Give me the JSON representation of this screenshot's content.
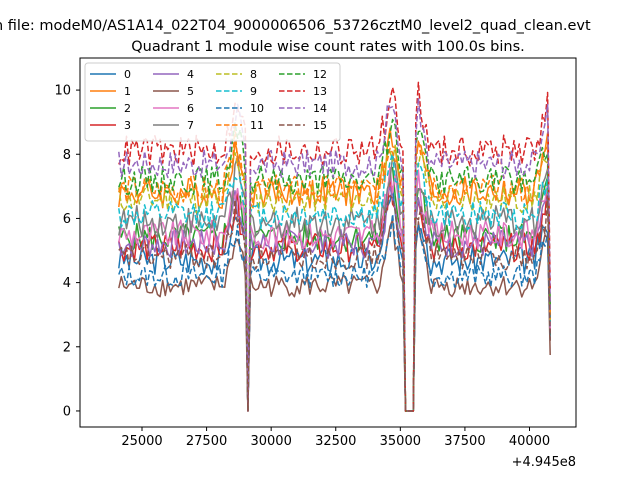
{
  "chart_data": {
    "type": "line",
    "suptitle": "n file: modeM0/AS1A14_022T04_9000006506_53726cztM0_level2_quad_clean.evt",
    "title": "Quadrant 1 module wise count rates with 100.0s bins.",
    "xlabel": "",
    "ylabel": "",
    "x_offset_label": "+4.945e8",
    "xlim": [
      22600,
      41800
    ],
    "ylim": [
      -0.5,
      11.0
    ],
    "x_ticks": [
      25000,
      27500,
      30000,
      32500,
      35000,
      37500,
      40000
    ],
    "x_tick_labels": [
      "25000",
      "27500",
      "30000",
      "32500",
      "35000",
      "37500",
      "40000"
    ],
    "y_ticks": [
      0,
      2,
      4,
      6,
      8,
      10
    ],
    "y_tick_labels": [
      "0",
      "2",
      "4",
      "6",
      "8",
      "10"
    ],
    "grid": false,
    "legend_position": "upper-left",
    "x_range": [
      24100,
      40800
    ],
    "bin": 100,
    "gaps": [
      {
        "start": 29050,
        "end": 29150,
        "drop_to": 0.0
      },
      {
        "start": 35150,
        "end": 35550,
        "drop_to": 0.0
      }
    ],
    "gap_peaks": [
      {
        "x": 28650,
        "rise": 1.5
      },
      {
        "x": 34650,
        "rise": 1.9
      },
      {
        "x": 35700,
        "rise": 1.6
      },
      {
        "x": 40700,
        "rise": 1.5
      }
    ],
    "series": [
      {
        "name": "0",
        "color": "#1f77b4",
        "dash": false,
        "level": 4.7,
        "noise": 0.45
      },
      {
        "name": "1",
        "color": "#ff7f0e",
        "dash": false,
        "level": 6.8,
        "noise": 0.5
      },
      {
        "name": "2",
        "color": "#2ca02c",
        "dash": false,
        "level": 5.4,
        "noise": 0.45
      },
      {
        "name": "3",
        "color": "#d62728",
        "dash": false,
        "level": 5.1,
        "noise": 0.45
      },
      {
        "name": "4",
        "color": "#9467bd",
        "dash": false,
        "level": 5.2,
        "noise": 0.45
      },
      {
        "name": "5",
        "color": "#8c564b",
        "dash": false,
        "level": 3.9,
        "noise": 0.35
      },
      {
        "name": "6",
        "color": "#e377c2",
        "dash": false,
        "level": 5.5,
        "noise": 0.45
      },
      {
        "name": "7",
        "color": "#7f7f7f",
        "dash": false,
        "level": 5.9,
        "noise": 0.5
      },
      {
        "name": "8",
        "color": "#bcbd22",
        "dash": true,
        "level": 6.6,
        "noise": 0.45
      },
      {
        "name": "9",
        "color": "#17becf",
        "dash": true,
        "level": 6.1,
        "noise": 0.45
      },
      {
        "name": "10",
        "color": "#1f77b4",
        "dash": true,
        "level": 4.2,
        "noise": 0.35
      },
      {
        "name": "11",
        "color": "#ff7f0e",
        "dash": true,
        "level": 6.9,
        "noise": 0.45
      },
      {
        "name": "12",
        "color": "#2ca02c",
        "dash": true,
        "level": 7.2,
        "noise": 0.45
      },
      {
        "name": "13",
        "color": "#d62728",
        "dash": true,
        "level": 8.1,
        "noise": 0.5
      },
      {
        "name": "14",
        "color": "#9467bd",
        "dash": true,
        "level": 7.7,
        "noise": 0.45
      },
      {
        "name": "15",
        "color": "#8c564b",
        "dash": true,
        "level": 4.8,
        "noise": 0.4
      }
    ]
  }
}
